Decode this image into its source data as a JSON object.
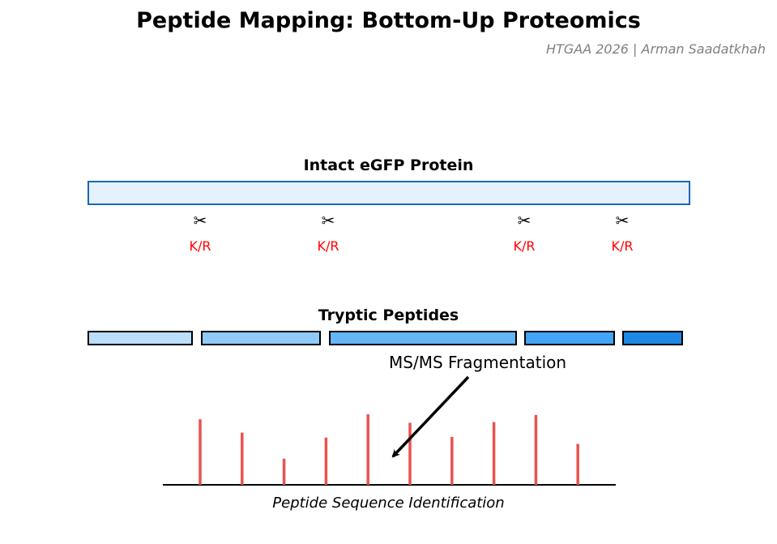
{
  "title": "Peptide Mapping: Bottom-Up Proteomics",
  "subtitle": "HTGAA 2026 | Arman Saadatkhah",
  "protein": {
    "label": "Intact eGFP Protein",
    "fill_color": "#e3f2fd",
    "border_color": "#1f66b8"
  },
  "cleavage_sites": [
    {
      "icon": "✂",
      "label": "K/R"
    },
    {
      "icon": "✂",
      "label": "K/R"
    },
    {
      "icon": "✂",
      "label": "K/R"
    },
    {
      "icon": "✂",
      "label": "K/R"
    }
  ],
  "peptides": {
    "label": "Tryptic Peptides",
    "colors": [
      "#bbdefb",
      "#90caf9",
      "#64b5f6",
      "#42a5f5",
      "#1e88e5"
    ]
  },
  "ms_label": "MS/MS Fragmentation",
  "spectrum": {
    "peak_color": "#e8534f",
    "intensities": [
      0.93,
      0.74,
      0.37,
      0.67,
      1.0,
      0.88,
      0.68,
      0.89,
      0.99,
      0.58
    ]
  },
  "identification_label": "Peptide Sequence Identification"
}
